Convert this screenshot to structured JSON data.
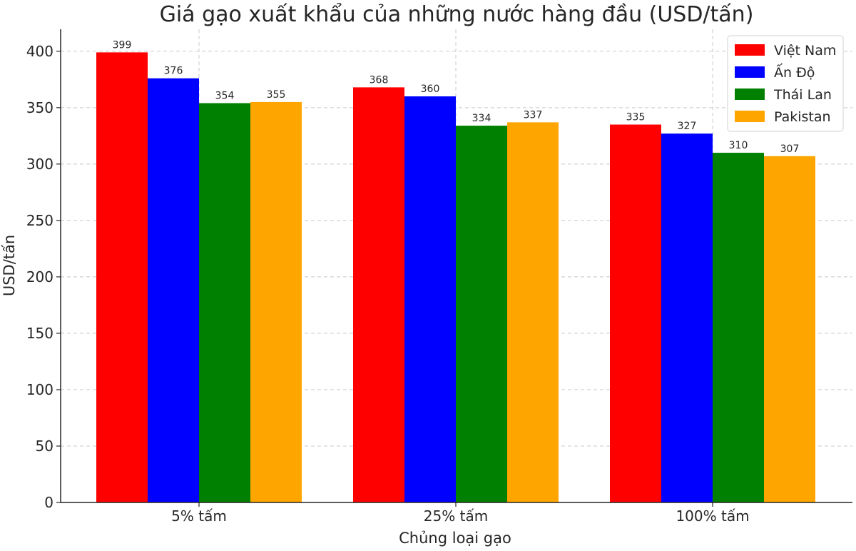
{
  "chart_data": {
    "type": "bar",
    "title": "Giá gạo xuất khẩu của những nước hàng đầu (USD/tấn)",
    "xlabel": "Chủng loại gạo",
    "ylabel": "USD/tấn",
    "categories": [
      "5% tấm",
      "25% tấm",
      "100% tấm"
    ],
    "series": [
      {
        "name": "Việt Nam",
        "color": "#ff0000",
        "values": [
          399,
          368,
          335
        ]
      },
      {
        "name": "Ấn Độ",
        "color": "#0000ff",
        "values": [
          376,
          360,
          327
        ]
      },
      {
        "name": "Thái Lan",
        "color": "#008000",
        "values": [
          354,
          334,
          310
        ]
      },
      {
        "name": "Pakistan",
        "color": "#ffa500",
        "values": [
          355,
          337,
          307
        ]
      }
    ],
    "ylim": [
      0,
      420
    ],
    "yticks": [
      0,
      50,
      100,
      150,
      200,
      250,
      300,
      350,
      400
    ],
    "grid": true,
    "legend_position": "top-right"
  }
}
